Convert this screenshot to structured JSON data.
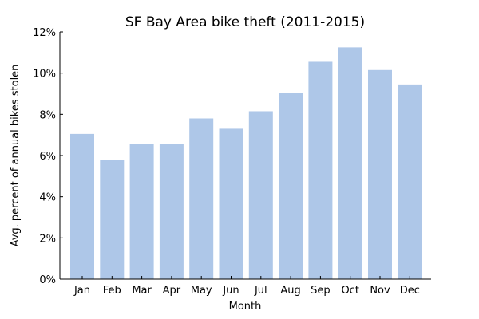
{
  "chart_data": {
    "type": "bar",
    "title": "SF Bay Area bike theft (2011-2015)",
    "xlabel": "Month",
    "ylabel": "Avg. percent of annual bikes stolen",
    "categories": [
      "Jan",
      "Feb",
      "Mar",
      "Apr",
      "May",
      "Jun",
      "Jul",
      "Aug",
      "Sep",
      "Oct",
      "Nov",
      "Dec"
    ],
    "values": [
      7.05,
      5.8,
      6.55,
      6.55,
      7.8,
      7.3,
      8.15,
      9.05,
      10.55,
      11.25,
      10.15,
      9.45
    ],
    "ylim": [
      0,
      12
    ],
    "yticks": [
      0,
      2,
      4,
      6,
      8,
      10,
      12
    ],
    "ytick_labels": [
      "0%",
      "2%",
      "4%",
      "6%",
      "8%",
      "10%",
      "12%"
    ],
    "bar_color": "#aec7e8",
    "grid": false,
    "legend": "none"
  }
}
